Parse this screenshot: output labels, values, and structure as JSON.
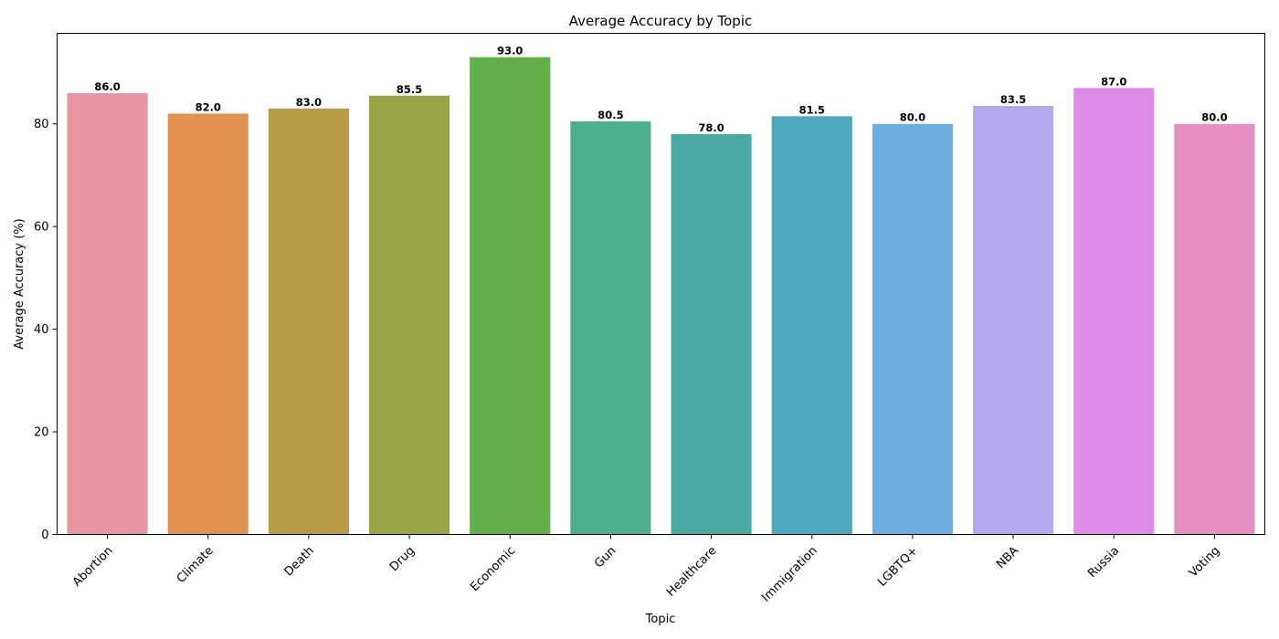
{
  "chart_data": {
    "type": "bar",
    "title": "Average Accuracy by Topic",
    "xlabel": "Topic",
    "ylabel": "Average Accuracy (%)",
    "categories": [
      "Abortion",
      "Climate",
      "Death",
      "Drug",
      "Economic",
      "Gun",
      "Healthcare",
      "Immigration",
      "LGBTQ+",
      "NBA",
      "Russia",
      "Voting"
    ],
    "values": [
      86.0,
      82.0,
      83.0,
      85.5,
      93.0,
      80.5,
      78.0,
      81.5,
      80.0,
      83.5,
      87.0,
      80.0
    ],
    "value_labels": [
      "86.0",
      "82.0",
      "83.0",
      "85.5",
      "93.0",
      "80.5",
      "78.0",
      "81.5",
      "80.0",
      "83.5",
      "87.0",
      "80.0"
    ],
    "colors": [
      "#e8969f",
      "#e0914f",
      "#b89b48",
      "#9aa446",
      "#62ae48",
      "#4aaf8a",
      "#4aa9a1",
      "#4ea9bd",
      "#6caee0",
      "#b6a8ec",
      "#de8ce8",
      "#e68ec2"
    ],
    "ylim": [
      0,
      97.65
    ],
    "yticks": [
      0,
      20,
      40,
      60,
      80
    ],
    "ytick_labels": [
      "0",
      "20",
      "40",
      "60",
      "80"
    ],
    "xtick_rotation": 45,
    "grid": false,
    "legend": "none"
  }
}
